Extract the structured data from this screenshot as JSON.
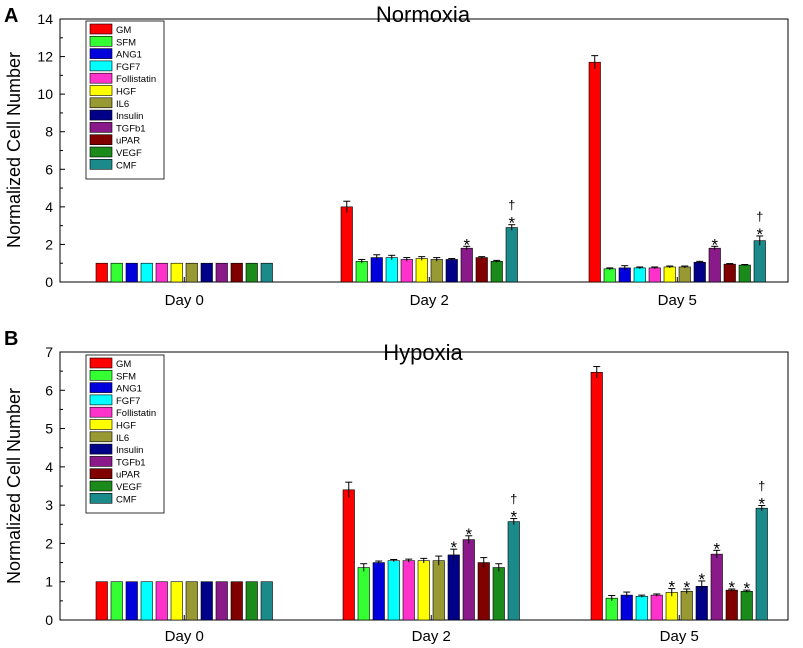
{
  "chart_data": [
    {
      "type": "bar",
      "panel_label": "A",
      "title": "Normoxia",
      "xlabel": "",
      "ylabel": "Normalized Cell Number",
      "ylim": [
        0,
        14
      ],
      "yticks": [
        "0",
        "2",
        "4",
        "6",
        "8",
        "10",
        "12",
        "14"
      ],
      "categories": [
        "Day 0",
        "Day 2",
        "Day 5"
      ],
      "legend_position": "top-left",
      "grid": false,
      "series": [
        {
          "name": "GM",
          "color": "#ff0000",
          "values": [
            1,
            4.0,
            11.7
          ],
          "errors": [
            0,
            0.3,
            0.35
          ],
          "marks": [
            "",
            "",
            ""
          ]
        },
        {
          "name": "SFM",
          "color": "#33ff33",
          "values": [
            1,
            1.1,
            0.7
          ],
          "errors": [
            0,
            0.1,
            0.05
          ],
          "marks": [
            "",
            "",
            ""
          ]
        },
        {
          "name": "ANG1",
          "color": "#0000dd",
          "values": [
            1,
            1.3,
            0.75
          ],
          "errors": [
            0,
            0.15,
            0.12
          ],
          "marks": [
            "",
            "",
            ""
          ]
        },
        {
          "name": "FGF7",
          "color": "#00ffff",
          "values": [
            1,
            1.3,
            0.75
          ],
          "errors": [
            0,
            0.12,
            0.05
          ],
          "marks": [
            "",
            "",
            ""
          ]
        },
        {
          "name": "Follistatin",
          "color": "#ff33cc",
          "values": [
            1,
            1.2,
            0.75
          ],
          "errors": [
            0,
            0.1,
            0.05
          ],
          "marks": [
            "",
            "",
            ""
          ]
        },
        {
          "name": "HGF",
          "color": "#ffff00",
          "values": [
            1,
            1.25,
            0.8
          ],
          "errors": [
            0,
            0.1,
            0.05
          ],
          "marks": [
            "",
            "",
            ""
          ]
        },
        {
          "name": "IL6",
          "color": "#999933",
          "values": [
            1,
            1.2,
            0.8
          ],
          "errors": [
            0,
            0.1,
            0.05
          ],
          "marks": [
            "",
            "",
            ""
          ]
        },
        {
          "name": "Insulin",
          "color": "#000088",
          "values": [
            1,
            1.2,
            1.05
          ],
          "errors": [
            0,
            0.05,
            0.05
          ],
          "marks": [
            "",
            "",
            ""
          ]
        },
        {
          "name": "TGFb1",
          "color": "#8a1a8a",
          "values": [
            1,
            1.8,
            1.8
          ],
          "errors": [
            0,
            0.1,
            0.1
          ],
          "marks": [
            "",
            "*",
            "*"
          ]
        },
        {
          "name": "uPAR",
          "color": "#800000",
          "values": [
            1,
            1.3,
            0.95
          ],
          "errors": [
            0,
            0.05,
            0.03
          ],
          "marks": [
            "",
            "",
            ""
          ]
        },
        {
          "name": "VEGF",
          "color": "#1a8a1a",
          "values": [
            1,
            1.1,
            0.9
          ],
          "errors": [
            0,
            0.05,
            0.03
          ],
          "marks": [
            "",
            "",
            ""
          ]
        },
        {
          "name": "CMF",
          "color": "#1a8a8a",
          "values": [
            1,
            2.9,
            2.2
          ],
          "errors": [
            0,
            0.15,
            0.25
          ],
          "marks": [
            "",
            "†\n*",
            "†\n*"
          ]
        }
      ]
    },
    {
      "type": "bar",
      "panel_label": "B",
      "title": "Hypoxia",
      "xlabel": "",
      "ylabel": "Normalized Cell Number",
      "ylim": [
        0,
        7
      ],
      "yticks": [
        "0",
        "1",
        "2",
        "3",
        "4",
        "5",
        "6",
        "7"
      ],
      "categories": [
        "Day 0",
        "Day 2",
        "Day 5"
      ],
      "legend_position": "top-left",
      "grid": false,
      "series": [
        {
          "name": "GM",
          "color": "#ff0000",
          "values": [
            1,
            3.4,
            6.47
          ],
          "errors": [
            0,
            0.2,
            0.15
          ],
          "marks": [
            "",
            "",
            ""
          ]
        },
        {
          "name": "SFM",
          "color": "#33ff33",
          "values": [
            1,
            1.37,
            0.57
          ],
          "errors": [
            0,
            0.1,
            0.07
          ],
          "marks": [
            "",
            "",
            ""
          ]
        },
        {
          "name": "ANG1",
          "color": "#0000dd",
          "values": [
            1,
            1.5,
            0.65
          ],
          "errors": [
            0,
            0.04,
            0.08
          ],
          "marks": [
            "",
            "",
            ""
          ]
        },
        {
          "name": "FGF7",
          "color": "#00ffff",
          "values": [
            1,
            1.55,
            0.62
          ],
          "errors": [
            0,
            0.03,
            0.03
          ],
          "marks": [
            "",
            "",
            ""
          ]
        },
        {
          "name": "Follistatin",
          "color": "#ff33cc",
          "values": [
            1,
            1.55,
            0.65
          ],
          "errors": [
            0,
            0.04,
            0.03
          ],
          "marks": [
            "",
            "",
            ""
          ]
        },
        {
          "name": "HGF",
          "color": "#ffff00",
          "values": [
            1,
            1.55,
            0.72
          ],
          "errors": [
            0,
            0.06,
            0.1
          ],
          "marks": [
            "",
            "",
            "*"
          ]
        },
        {
          "name": "IL6",
          "color": "#999933",
          "values": [
            1,
            1.55,
            0.75
          ],
          "errors": [
            0,
            0.12,
            0.06
          ],
          "marks": [
            "",
            "",
            "*"
          ]
        },
        {
          "name": "Insulin",
          "color": "#000088",
          "values": [
            1,
            1.7,
            0.88
          ],
          "errors": [
            0,
            0.15,
            0.14
          ],
          "marks": [
            "",
            "*",
            "*"
          ]
        },
        {
          "name": "TGFb1",
          "color": "#8a1a8a",
          "values": [
            1,
            2.1,
            1.72
          ],
          "errors": [
            0,
            0.1,
            0.1
          ],
          "marks": [
            "",
            "*",
            "*"
          ]
        },
        {
          "name": "uPAR",
          "color": "#800000",
          "values": [
            1,
            1.5,
            0.78
          ],
          "errors": [
            0,
            0.13,
            0.03
          ],
          "marks": [
            "",
            "",
            "*"
          ]
        },
        {
          "name": "VEGF",
          "color": "#1a8a1a",
          "values": [
            1,
            1.37,
            0.75
          ],
          "errors": [
            0,
            0.1,
            0.03
          ],
          "marks": [
            "",
            "",
            "*"
          ]
        },
        {
          "name": "CMF",
          "color": "#1a8a8a",
          "values": [
            1,
            2.57,
            2.92
          ],
          "errors": [
            0,
            0.08,
            0.07
          ],
          "marks": [
            "",
            "†\n*",
            "†\n*"
          ]
        }
      ]
    }
  ]
}
